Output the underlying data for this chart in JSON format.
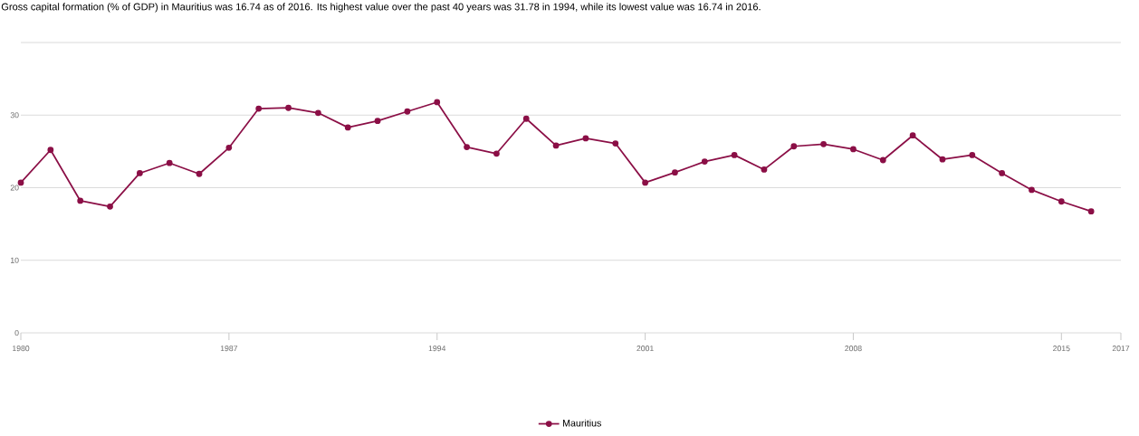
{
  "chart_data": {
    "type": "line",
    "title": "Gross capital formation (% of GDP) in Mauritius was 16.74 as of 2016. Its highest value over the past 40 years was 31.78 in 1994, while its lowest value was 16.74 in 2016.",
    "x": [
      1980,
      1981,
      1982,
      1983,
      1984,
      1985,
      1986,
      1987,
      1988,
      1989,
      1990,
      1991,
      1992,
      1993,
      1994,
      1995,
      1996,
      1997,
      1998,
      1999,
      2000,
      2001,
      2002,
      2003,
      2004,
      2005,
      2006,
      2007,
      2008,
      2009,
      2010,
      2011,
      2012,
      2013,
      2014,
      2015,
      2016
    ],
    "series": [
      {
        "name": "Mauritius",
        "color": "#8b0f46",
        "values": [
          20.7,
          25.2,
          18.2,
          17.4,
          22.0,
          23.4,
          21.9,
          25.5,
          30.9,
          31.0,
          30.3,
          28.3,
          29.2,
          30.5,
          31.78,
          25.6,
          24.7,
          29.5,
          25.8,
          26.8,
          26.1,
          20.7,
          22.1,
          23.6,
          24.5,
          22.5,
          25.7,
          26.0,
          25.3,
          23.8,
          27.2,
          23.9,
          24.5,
          22.0,
          19.7,
          18.1,
          16.74
        ]
      }
    ],
    "xlim": [
      1980,
      2017
    ],
    "xticks": [
      1980,
      1987,
      1994,
      2001,
      2008,
      2015,
      2017
    ],
    "ylim": [
      0,
      40
    ],
    "yticks": [
      0,
      10,
      20,
      30,
      {
        "value": 40,
        "label": null
      }
    ],
    "grid": "y",
    "legend": "bottom",
    "marker": "circle",
    "line_style": "solid"
  }
}
